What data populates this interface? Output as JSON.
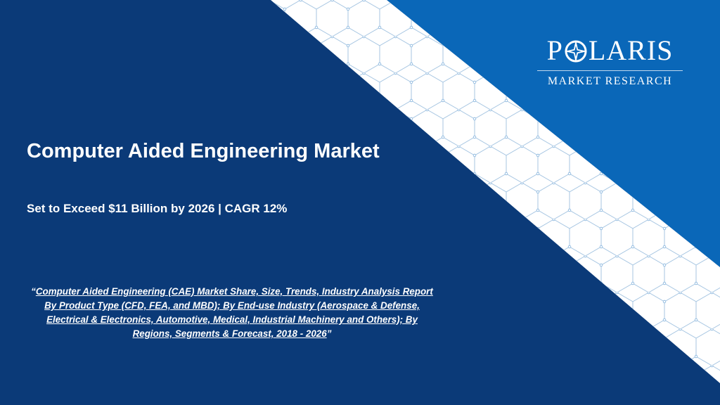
{
  "brand": {
    "name_left": "P",
    "name_right": "LARIS",
    "tagline": "MARKET RESEARCH",
    "logo_icon": "compass-star-icon"
  },
  "title": "Computer Aided Engineering Market",
  "subtitle": "Set to Exceed $11 Billion by 2026 | CAGR 12%",
  "report": {
    "open_quote": "“",
    "link_text": "Computer Aided Engineering (CAE) Market Share, Size, Trends, Industry Analysis Report By Product Type (CFD, FEA, and MBD); By End-use Industry (Aerospace & Defense, Electrical & Electronics, Automotive, Medical, Industrial Machinery and Others); By Regions, Segments & Forecast, 2018 - 2026",
    "close_quote": "”"
  },
  "colors": {
    "dark_blue": "#0b3a78",
    "light_blue": "#0a67b8",
    "band_white": "#ffffff",
    "pattern_line": "#9fc3e3"
  }
}
